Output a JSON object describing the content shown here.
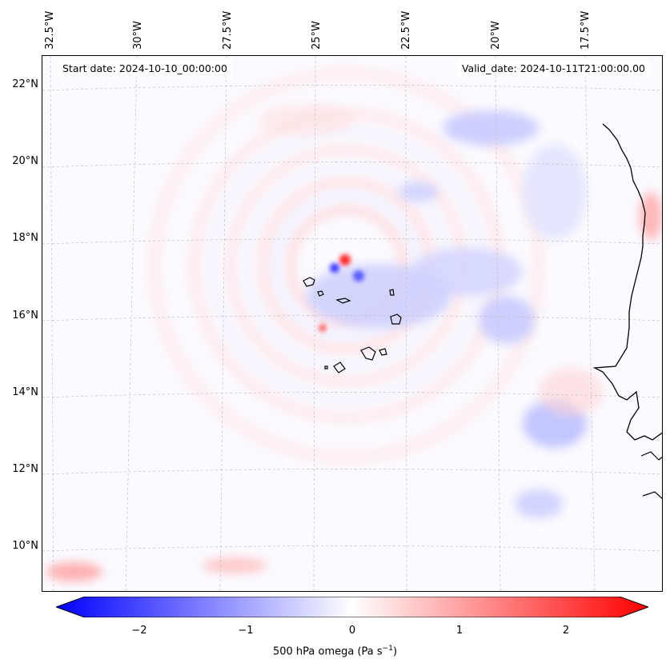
{
  "header": {
    "start_date": "Start date: 2024-10-10_00:00:00",
    "valid_date": "Valid_date: 2024-10-11T21:00:00.00"
  },
  "axes": {
    "longitude_labels": [
      "32.5°W",
      "30°W",
      "27.5°W",
      "25°W",
      "22.5°W",
      "20°W",
      "17.5°W"
    ],
    "latitude_labels": [
      "22°N",
      "20°N",
      "18°N",
      "16°N",
      "14°N",
      "12°N",
      "10°N"
    ]
  },
  "colorbar": {
    "ticks": [
      "−2",
      "−1",
      "0",
      "1",
      "2"
    ],
    "label_prefix": "500 hPa omega (Pa s",
    "label_exponent": "−1",
    "label_suffix": ")",
    "min_color": "#0000ff",
    "mid_color": "#ffffff",
    "max_color": "#ff0000"
  },
  "map": {
    "variable": "500 hPa omega",
    "features": [
      "Cape Verde islands",
      "West African coastline"
    ]
  }
}
